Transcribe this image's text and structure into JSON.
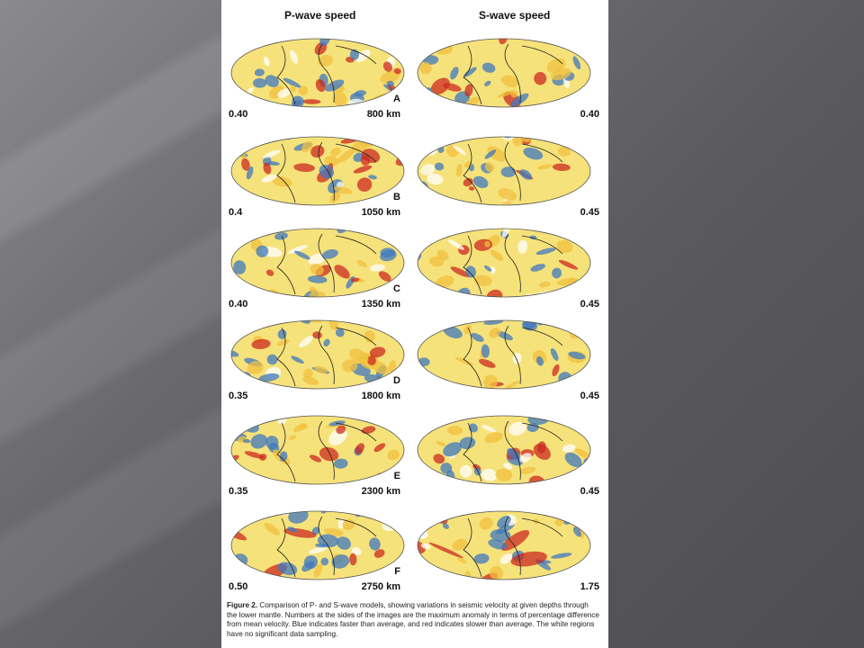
{
  "figure": {
    "headers": [
      "P-wave speed",
      "S-wave speed"
    ],
    "rows": [
      {
        "letter": "A",
        "depth": "800 km",
        "p_max": "0.40",
        "s_max": "0.40"
      },
      {
        "letter": "B",
        "depth": "1050 km",
        "p_max": "0.4",
        "s_max": "0.45"
      },
      {
        "letter": "C",
        "depth": "1350 km",
        "p_max": "0.40",
        "s_max": "0.45"
      },
      {
        "letter": "D",
        "depth": "1800 km",
        "p_max": "0.35",
        "s_max": "0.45"
      },
      {
        "letter": "E",
        "depth": "2300 km",
        "p_max": "0.35",
        "s_max": "0.45"
      },
      {
        "letter": "F",
        "depth": "2750 km",
        "p_max": "0.50",
        "s_max": "1.75"
      }
    ],
    "caption": {
      "label": "Figure 2.",
      "text": "Comparison of P- and S-wave models, showing variations in seismic velocity at given depths through the lower mantle. Numbers at the sides of the images are the maximum anomaly in terms of percentage difference from mean velocity. Blue indicates faster than average, and red indicates slower than average. The white regions have no significant data sampling."
    }
  }
}
